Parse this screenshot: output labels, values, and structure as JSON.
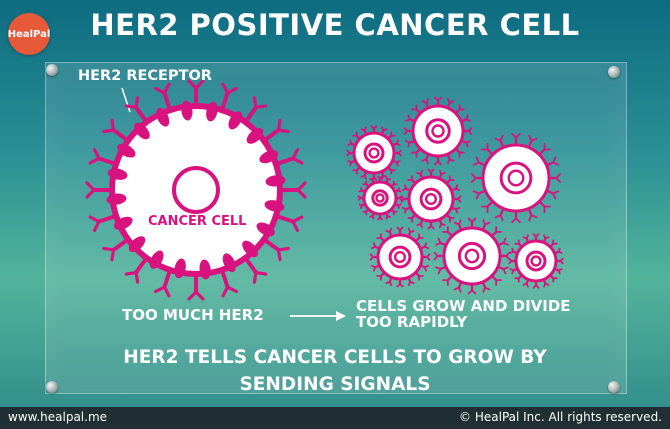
{
  "title": "HER2 POSITIVE CANCER CELL",
  "logo_text": "HealPal",
  "labels": {
    "receptor": "HER2 RECEPTOR",
    "cancer_cell": "CANCER CELL",
    "too_much": "TOO MUCH HER2",
    "grow_line1": "CELLS GROW AND DIVIDE",
    "grow_line2": "TOO RAPIDLY",
    "signals_line1": "HER2 TELLS CANCER CELLS TO GROW BY",
    "signals_line2": "SENDING SIGNALS"
  },
  "footer": {
    "website": "www.healpal.me",
    "copyright": "© HealPal Inc. All rights reserved."
  },
  "colors": {
    "magenta": "#d8137f",
    "cell_fill": "#ffffff"
  }
}
